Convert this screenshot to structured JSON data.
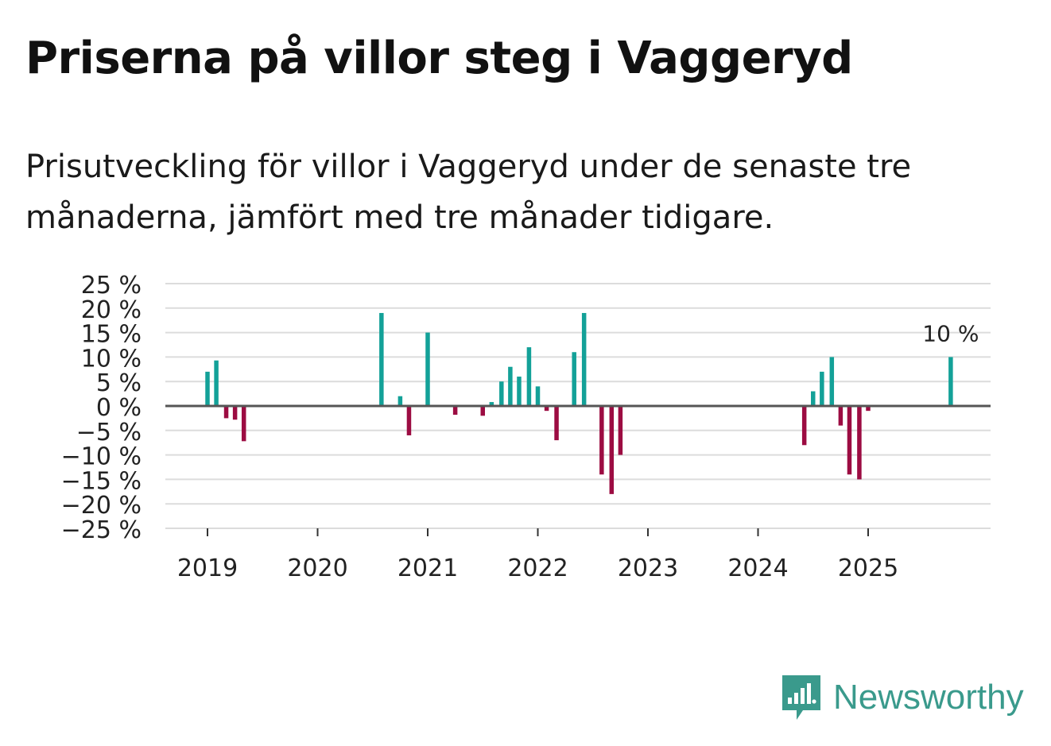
{
  "header": {
    "title": "Priserna på villor steg i Vaggeryd",
    "subtitle": "Prisutveckling för villor i Vaggeryd under de senaste tre månaderna, jämfört med tre månader tidigare."
  },
  "brand": {
    "name": "Newsworthy",
    "icon": "newsworthy-logo-icon"
  },
  "colors": {
    "positive": "#13a198",
    "negative": "#9c0c42",
    "grid": "#dcdcdc",
    "zero": "#555555",
    "brand": "#3a9a8c"
  },
  "chart_data": {
    "type": "bar",
    "title": "Priserna på villor steg i Vaggeryd",
    "xlabel": "",
    "ylabel": "",
    "ylim": [
      -25,
      25
    ],
    "yticks": [
      25,
      20,
      15,
      10,
      5,
      0,
      -5,
      -10,
      -15,
      -20,
      -25
    ],
    "ytick_labels": [
      "25 %",
      "20 %",
      "15 %",
      "10 %",
      "5 %",
      "0 %",
      "−5 %",
      "−10 %",
      "−15 %",
      "−20 %",
      "−25 %"
    ],
    "xlim": [
      2018.6,
      2026.1
    ],
    "xticks": [
      2019,
      2020,
      2021,
      2022,
      2023,
      2024,
      2025
    ],
    "xtick_labels": [
      "2019",
      "2020",
      "2021",
      "2022",
      "2023",
      "2024",
      "2025"
    ],
    "annotation": {
      "text": "10 %",
      "x": 2025.75,
      "value": 10
    },
    "bars": [
      {
        "x": 2019.0,
        "value": 7
      },
      {
        "x": 2019.08,
        "value": 9.3
      },
      {
        "x": 2019.17,
        "value": -2.5
      },
      {
        "x": 2019.25,
        "value": -2.8
      },
      {
        "x": 2019.33,
        "value": -7.2
      },
      {
        "x": 2020.58,
        "value": 19
      },
      {
        "x": 2020.75,
        "value": 2
      },
      {
        "x": 2020.83,
        "value": -6
      },
      {
        "x": 2021.0,
        "value": 15
      },
      {
        "x": 2021.25,
        "value": -1.8
      },
      {
        "x": 2021.5,
        "value": -2
      },
      {
        "x": 2021.58,
        "value": 0.8
      },
      {
        "x": 2021.67,
        "value": 5
      },
      {
        "x": 2021.75,
        "value": 8
      },
      {
        "x": 2021.83,
        "value": 6
      },
      {
        "x": 2021.92,
        "value": 12
      },
      {
        "x": 2022.0,
        "value": 4
      },
      {
        "x": 2022.08,
        "value": -1
      },
      {
        "x": 2022.17,
        "value": -7
      },
      {
        "x": 2022.33,
        "value": 11
      },
      {
        "x": 2022.42,
        "value": 19
      },
      {
        "x": 2022.58,
        "value": -14
      },
      {
        "x": 2022.67,
        "value": -18
      },
      {
        "x": 2022.75,
        "value": -10
      },
      {
        "x": 2024.42,
        "value": -8
      },
      {
        "x": 2024.5,
        "value": 3
      },
      {
        "x": 2024.58,
        "value": 7
      },
      {
        "x": 2024.67,
        "value": 10
      },
      {
        "x": 2024.75,
        "value": -4
      },
      {
        "x": 2024.83,
        "value": -14
      },
      {
        "x": 2024.92,
        "value": -15
      },
      {
        "x": 2025.0,
        "value": -1
      },
      {
        "x": 2025.75,
        "value": 10
      }
    ]
  }
}
